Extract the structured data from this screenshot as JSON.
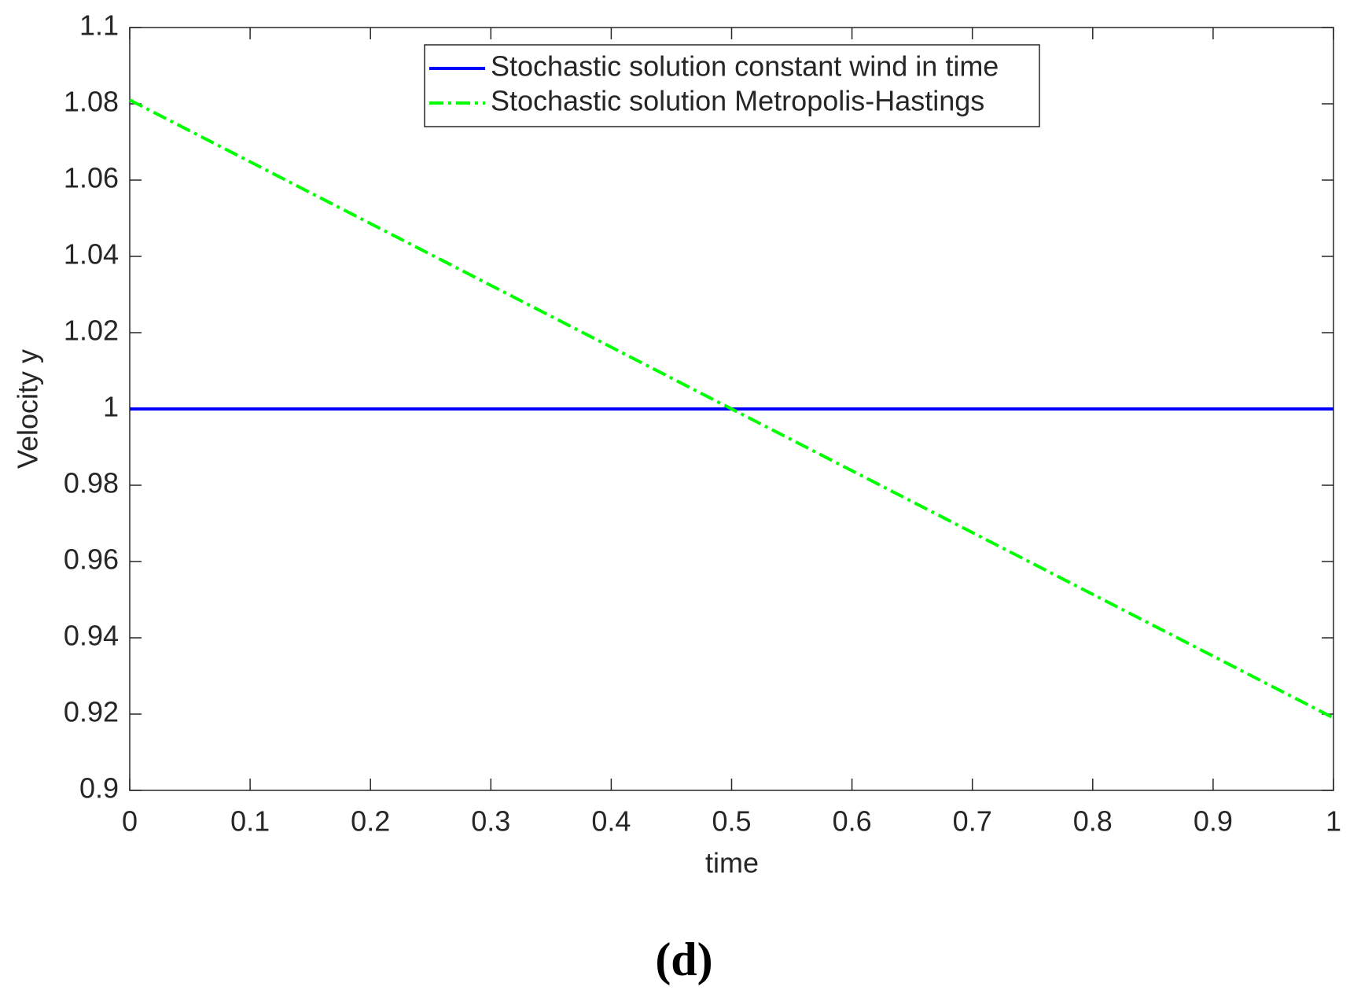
{
  "chart_data": {
    "type": "line",
    "x": [
      0,
      1
    ],
    "series": [
      {
        "name": "Stochastic solution constant wind in time",
        "color": "#0000ff",
        "dash": "solid",
        "values": [
          1,
          1
        ]
      },
      {
        "name": "Stochastic solution Metropolis-Hastings",
        "color": "#00ff00",
        "dash": "dashdot",
        "values": [
          1.081,
          0.919
        ]
      }
    ],
    "xlabel": "time",
    "ylabel": "Velocity y",
    "xlim": [
      0,
      1
    ],
    "xticks": [
      0,
      0.1,
      0.2,
      0.3,
      0.4,
      0.5,
      0.6,
      0.7,
      0.8,
      0.9,
      1
    ],
    "ylim": [
      0.9,
      1.1
    ],
    "yticks": [
      0.9,
      0.92,
      0.94,
      0.96,
      0.98,
      1,
      1.02,
      1.04,
      1.06,
      1.08,
      1.1
    ],
    "grid": false,
    "legend": "top-center",
    "caption": "(d)"
  }
}
